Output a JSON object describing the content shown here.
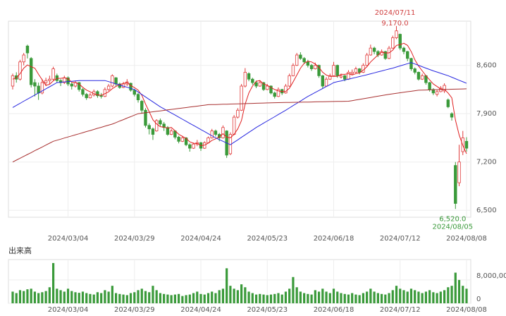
{
  "chart_data": {
    "type": "candlestick",
    "categories": [
      null,
      null,
      null,
      null,
      null,
      null,
      null,
      null,
      null,
      null,
      null,
      null,
      null,
      null,
      null,
      "2024/03/04",
      null,
      null,
      null,
      null,
      null,
      null,
      null,
      null,
      null,
      null,
      null,
      null,
      null,
      null,
      null,
      null,
      null,
      "2024/03/29",
      null,
      null,
      null,
      null,
      null,
      null,
      null,
      null,
      null,
      null,
      null,
      null,
      null,
      null,
      null,
      null,
      null,
      "2024/04/24",
      null,
      null,
      null,
      null,
      null,
      null,
      null,
      null,
      null,
      null,
      null,
      null,
      null,
      null,
      null,
      null,
      null,
      "2024/05/23",
      null,
      null,
      null,
      null,
      null,
      null,
      null,
      null,
      null,
      null,
      null,
      null,
      null,
      null,
      null,
      null,
      null,
      "2024/06/18",
      null,
      null,
      null,
      null,
      null,
      null,
      null,
      null,
      null,
      null,
      null,
      null,
      null,
      null,
      null,
      null,
      null,
      "2024/07/12",
      null,
      null,
      null,
      null,
      null,
      null,
      null,
      null,
      null,
      null,
      null,
      null,
      null,
      null,
      null,
      null,
      null,
      "2024/08/08"
    ],
    "candles": [
      [
        8300,
        8480,
        8250,
        8450
      ],
      [
        8450,
        8500,
        8350,
        8400
      ],
      [
        8400,
        8680,
        8380,
        8650
      ],
      [
        8650,
        8780,
        8600,
        8750
      ],
      [
        8880,
        8900,
        8700,
        8780
      ],
      [
        8700,
        8720,
        8280,
        8320
      ],
      [
        8350,
        8400,
        8150,
        8300
      ],
      [
        8300,
        8350,
        8100,
        8200
      ],
      [
        8200,
        8400,
        8180,
        8350
      ],
      [
        8350,
        8420,
        8300,
        8380
      ],
      [
        8380,
        8450,
        8330,
        8400
      ],
      [
        8400,
        8580,
        8380,
        8550
      ],
      [
        8450,
        8480,
        8350,
        8380
      ],
      [
        8380,
        8400,
        8300,
        8350
      ],
      [
        8350,
        8450,
        8330,
        8420
      ],
      [
        8420,
        8440,
        8300,
        8330
      ],
      [
        8330,
        8350,
        8250,
        8300
      ],
      [
        8300,
        8380,
        8280,
        8350
      ],
      [
        8350,
        8360,
        8220,
        8250
      ],
      [
        8250,
        8270,
        8150,
        8180
      ],
      [
        8180,
        8200,
        8100,
        8130
      ],
      [
        8130,
        8200,
        8120,
        8170
      ],
      [
        8170,
        8250,
        8150,
        8220
      ],
      [
        8220,
        8240,
        8130,
        8160
      ],
      [
        8160,
        8200,
        8120,
        8150
      ],
      [
        8150,
        8280,
        8140,
        8250
      ],
      [
        8250,
        8330,
        8230,
        8300
      ],
      [
        8300,
        8470,
        8280,
        8450
      ],
      [
        8420,
        8430,
        8300,
        8330
      ],
      [
        8330,
        8350,
        8260,
        8280
      ],
      [
        8280,
        8360,
        8270,
        8330
      ],
      [
        8330,
        8400,
        8300,
        8360
      ],
      [
        8340,
        8350,
        8220,
        8240
      ],
      [
        8240,
        8260,
        8150,
        8180
      ],
      [
        8180,
        8200,
        8060,
        8100
      ],
      [
        8080,
        8100,
        7900,
        7950
      ],
      [
        7950,
        7980,
        7700,
        7730
      ],
      [
        7730,
        7760,
        7600,
        7680
      ],
      [
        7680,
        7700,
        7520,
        7600
      ],
      [
        7650,
        7820,
        7640,
        7800
      ],
      [
        7800,
        7830,
        7720,
        7750
      ],
      [
        7750,
        7780,
        7650,
        7700
      ],
      [
        7700,
        7720,
        7580,
        7600
      ],
      [
        7600,
        7680,
        7590,
        7650
      ],
      [
        7650,
        7660,
        7530,
        7560
      ],
      [
        7560,
        7580,
        7470,
        7500
      ],
      [
        7500,
        7580,
        7490,
        7550
      ],
      [
        7550,
        7560,
        7430,
        7450
      ],
      [
        7450,
        7470,
        7350,
        7400
      ],
      [
        7400,
        7480,
        7390,
        7460
      ],
      [
        7460,
        7520,
        7430,
        7480
      ],
      [
        7480,
        7490,
        7360,
        7400
      ],
      [
        7400,
        7500,
        7390,
        7480
      ],
      [
        7480,
        7570,
        7470,
        7550
      ],
      [
        7550,
        7680,
        7540,
        7650
      ],
      [
        7650,
        7670,
        7570,
        7600
      ],
      [
        7600,
        7620,
        7500,
        7550
      ],
      [
        7550,
        7730,
        7540,
        7700
      ],
      [
        7650,
        7660,
        7260,
        7300
      ],
      [
        7320,
        7630,
        7300,
        7600
      ],
      [
        7600,
        7880,
        7590,
        7850
      ],
      [
        7850,
        7980,
        7830,
        7950
      ],
      [
        7950,
        8330,
        7940,
        8300
      ],
      [
        8300,
        8560,
        8280,
        8500
      ],
      [
        8480,
        8500,
        8370,
        8400
      ],
      [
        8400,
        8420,
        8320,
        8350
      ],
      [
        8350,
        8380,
        8270,
        8300
      ],
      [
        8300,
        8380,
        8290,
        8350
      ],
      [
        8350,
        8360,
        8230,
        8250
      ],
      [
        8250,
        8330,
        8240,
        8300
      ],
      [
        8300,
        8310,
        8180,
        8200
      ],
      [
        8200,
        8220,
        8120,
        8150
      ],
      [
        8150,
        8280,
        8140,
        8250
      ],
      [
        8250,
        8260,
        8170,
        8200
      ],
      [
        8200,
        8330,
        8190,
        8300
      ],
      [
        8300,
        8480,
        8290,
        8450
      ],
      [
        8450,
        8630,
        8440,
        8600
      ],
      [
        8600,
        8780,
        8590,
        8750
      ],
      [
        8750,
        8790,
        8680,
        8700
      ],
      [
        8700,
        8720,
        8620,
        8650
      ],
      [
        8650,
        8680,
        8570,
        8600
      ],
      [
        8600,
        8620,
        8520,
        8550
      ],
      [
        8550,
        8640,
        8540,
        8600
      ],
      [
        8600,
        8610,
        8420,
        8450
      ],
      [
        8450,
        8460,
        8260,
        8300
      ],
      [
        8300,
        8430,
        8290,
        8400
      ],
      [
        8400,
        8480,
        8390,
        8450
      ],
      [
        8450,
        8650,
        8440,
        8600
      ],
      [
        8600,
        8610,
        8420,
        8450
      ],
      [
        8430,
        8480,
        8410,
        8450
      ],
      [
        8450,
        8460,
        8370,
        8400
      ],
      [
        8400,
        8530,
        8390,
        8500
      ],
      [
        8480,
        8540,
        8460,
        8500
      ],
      [
        8500,
        8580,
        8490,
        8550
      ],
      [
        8550,
        8560,
        8470,
        8500
      ],
      [
        8500,
        8630,
        8490,
        8600
      ],
      [
        8600,
        8780,
        8590,
        8750
      ],
      [
        8750,
        8900,
        8740,
        8850
      ],
      [
        8850,
        8870,
        8760,
        8800
      ],
      [
        8800,
        8820,
        8720,
        8750
      ],
      [
        8750,
        8830,
        8740,
        8800
      ],
      [
        8800,
        8810,
        8680,
        8700
      ],
      [
        8700,
        8880,
        8690,
        8850
      ],
      [
        8850,
        9030,
        8840,
        9000
      ],
      [
        9000,
        9170,
        8980,
        9100
      ],
      [
        9050,
        9060,
        8820,
        8850
      ],
      [
        8850,
        8870,
        8760,
        8800
      ],
      [
        8800,
        8810,
        8660,
        8700
      ],
      [
        8700,
        8710,
        8520,
        8550
      ],
      [
        8550,
        8570,
        8470,
        8500
      ],
      [
        8500,
        8510,
        8380,
        8400
      ],
      [
        8400,
        8480,
        8390,
        8450
      ],
      [
        8450,
        8460,
        8320,
        8350
      ],
      [
        8350,
        8360,
        8220,
        8250
      ],
      [
        8250,
        8270,
        8170,
        8200
      ],
      [
        8180,
        8240,
        8150,
        8220
      ],
      [
        8220,
        8300,
        8210,
        8270
      ],
      [
        8230,
        8340,
        8200,
        8310
      ],
      [
        8100,
        8120,
        7980,
        8000
      ],
      [
        7900,
        7920,
        7800,
        7850
      ],
      [
        7150,
        7200,
        6520,
        6600
      ],
      [
        6900,
        7450,
        6850,
        7200
      ],
      [
        7350,
        7650,
        7300,
        7550
      ],
      [
        7500,
        7560,
        7350,
        7400
      ]
    ],
    "up_color": "#e03a3a",
    "down_color": "#3a9a3a",
    "series": [
      {
        "name": "MA5",
        "color": "#e02020",
        "values": [
          8400,
          8420,
          8480,
          8560,
          8606,
          8580,
          8560,
          8470,
          8390,
          8310,
          8326,
          8376,
          8412,
          8412,
          8420,
          8406,
          8356,
          8350,
          8330,
          8282,
          8242,
          8216,
          8190,
          8172,
          8166,
          8190,
          8216,
          8262,
          8296,
          8322,
          8338,
          8350,
          8308,
          8278,
          8242,
          8166,
          8040,
          7928,
          7812,
          7752,
          7712,
          7706,
          7690,
          7700,
          7652,
          7602,
          7572,
          7542,
          7492,
          7472,
          7468,
          7438,
          7444,
          7474,
          7512,
          7536,
          7566,
          7610,
          7560,
          7550,
          7600,
          7680,
          7800,
          8040,
          8200,
          8300,
          8370,
          8380,
          8330,
          8310,
          8280,
          8250,
          8230,
          8220,
          8220,
          8270,
          8360,
          8460,
          8560,
          8630,
          8660,
          8650,
          8620,
          8570,
          8500,
          8460,
          8440,
          8440,
          8440,
          8470,
          8470,
          8480,
          8460,
          8480,
          8490,
          8530,
          8580,
          8650,
          8700,
          8750,
          8790,
          8780,
          8780,
          8820,
          8890,
          8900,
          8920,
          8890,
          8800,
          8680,
          8590,
          8520,
          8450,
          8390,
          8330,
          8294,
          8258,
          8250,
          8200,
          8130,
          7806,
          7592,
          7440,
          7320
        ]
      },
      {
        "name": "MA25",
        "color": "#2828e0",
        "values": [
          7990,
          8020,
          8050,
          8080,
          8110,
          8140,
          8170,
          8200,
          8230,
          8260,
          8290,
          8320,
          8350,
          8355,
          8360,
          8365,
          8370,
          8375,
          8380,
          8380,
          8380,
          8380,
          8380,
          8380,
          8380,
          8380,
          8364,
          8348,
          8331,
          8315,
          8299,
          8283,
          8266,
          8250,
          8214,
          8179,
          8143,
          8107,
          8071,
          8036,
          8000,
          7970,
          7940,
          7910,
          7880,
          7850,
          7820,
          7790,
          7760,
          7730,
          7700,
          7670,
          7640,
          7610,
          7580,
          7550,
          7525,
          7500,
          7475,
          7450,
          7486,
          7521,
          7557,
          7593,
          7629,
          7664,
          7700,
          7731,
          7763,
          7794,
          7825,
          7856,
          7888,
          7919,
          7950,
          7983,
          8017,
          8050,
          8083,
          8117,
          8150,
          8179,
          8207,
          8236,
          8264,
          8293,
          8321,
          8350,
          8363,
          8375,
          8388,
          8400,
          8413,
          8425,
          8438,
          8450,
          8464,
          8478,
          8491,
          8505,
          8519,
          8533,
          8546,
          8560,
          8576,
          8592,
          8608,
          8624,
          8640,
          8620,
          8600,
          8580,
          8560,
          8540,
          8520,
          8503,
          8485,
          8468,
          8450,
          8428,
          8406,
          8384,
          8362,
          8340
        ]
      },
      {
        "name": "MA75",
        "color": "#a83030",
        "values": [
          7200,
          7227,
          7255,
          7282,
          7309,
          7336,
          7364,
          7391,
          7418,
          7445,
          7473,
          7500,
          7516,
          7531,
          7547,
          7563,
          7578,
          7594,
          7609,
          7625,
          7641,
          7656,
          7672,
          7688,
          7703,
          7719,
          7734,
          7750,
          7771,
          7793,
          7814,
          7836,
          7857,
          7879,
          7900,
          7907,
          7914,
          7921,
          7927,
          7934,
          7941,
          7948,
          7955,
          7962,
          7968,
          7975,
          7982,
          7989,
          7996,
          8003,
          8009,
          8016,
          8023,
          8030,
          8032,
          8033,
          8035,
          8037,
          8038,
          8040,
          8041,
          8043,
          8044,
          8046,
          8048,
          8049,
          8051,
          8052,
          8054,
          8056,
          8057,
          8059,
          8060,
          8061,
          8062,
          8063,
          8064,
          8065,
          8066,
          8067,
          8068,
          8069,
          8071,
          8072,
          8073,
          8074,
          8075,
          8076,
          8077,
          8078,
          8079,
          8080,
          8089,
          8098,
          8107,
          8116,
          8125,
          8135,
          8144,
          8153,
          8162,
          8171,
          8180,
          8188,
          8195,
          8203,
          8210,
          8218,
          8225,
          8233,
          8240,
          8242,
          8243,
          8245,
          8246,
          8248,
          8249,
          8251,
          8252,
          8254,
          8255,
          8257,
          8258,
          8260
        ]
      }
    ],
    "ylim": [
      6400,
      9240
    ],
    "yticks": [
      {
        "value": 6500,
        "label": "6,500"
      },
      {
        "value": 7200,
        "label": "7,200"
      },
      {
        "value": 7900,
        "label": "7,900"
      },
      {
        "value": 8600,
        "label": "8,600"
      }
    ],
    "grid": true,
    "high_annotation": {
      "date": "2024/07/11",
      "label": "9,170.0"
    },
    "low_annotation": {
      "date": "2024/08/05",
      "label": "6,520.0"
    },
    "volume_title": "出来高",
    "volume_color": "#3a9a3a",
    "volume": [
      4000000,
      3500000,
      4500000,
      4200000,
      4800000,
      5000000,
      4000000,
      3500000,
      3800000,
      4200000,
      5500000,
      13800000,
      5000000,
      4500000,
      4000000,
      5000000,
      4200000,
      3800000,
      3600000,
      4000000,
      3500000,
      3200000,
      3000000,
      3800000,
      3500000,
      4500000,
      4000000,
      6000000,
      3500000,
      3200000,
      3000000,
      2800000,
      3500000,
      3800000,
      4500000,
      5000000,
      4200000,
      3800000,
      6000000,
      4500000,
      3500000,
      3200000,
      3000000,
      2800000,
      3000000,
      3200000,
      2500000,
      2800000,
      3000000,
      3500000,
      4000000,
      3200000,
      3000000,
      3500000,
      4000000,
      3500000,
      4500000,
      5000000,
      12000000,
      6000000,
      5000000,
      4500000,
      6500000,
      5500000,
      4000000,
      3500000,
      3000000,
      3200000,
      3000000,
      2800000,
      3000000,
      3200000,
      3500000,
      3000000,
      4000000,
      5000000,
      9000000,
      5500000,
      4000000,
      3500000,
      3200000,
      3000000,
      4500000,
      4000000,
      5000000,
      4000000,
      3500000,
      5000000,
      4000000,
      3500000,
      3200000,
      3000000,
      3500000,
      3000000,
      2800000,
      3500000,
      4000000,
      5000000,
      4000000,
      3500000,
      3200000,
      3000000,
      3500000,
      4500000,
      6000000,
      5000000,
      4500000,
      4000000,
      5000000,
      4500000,
      4000000,
      3500000,
      4000000,
      4500000,
      3800000,
      3500000,
      4000000,
      4500000,
      5500000,
      6000000,
      10500000,
      8000000,
      6000000,
      5000000
    ],
    "volume_ylim": [
      0,
      14500000
    ],
    "volume_yticks": [
      0,
      {
        "value": 8000000,
        "label": "8,000,000"
      }
    ]
  }
}
